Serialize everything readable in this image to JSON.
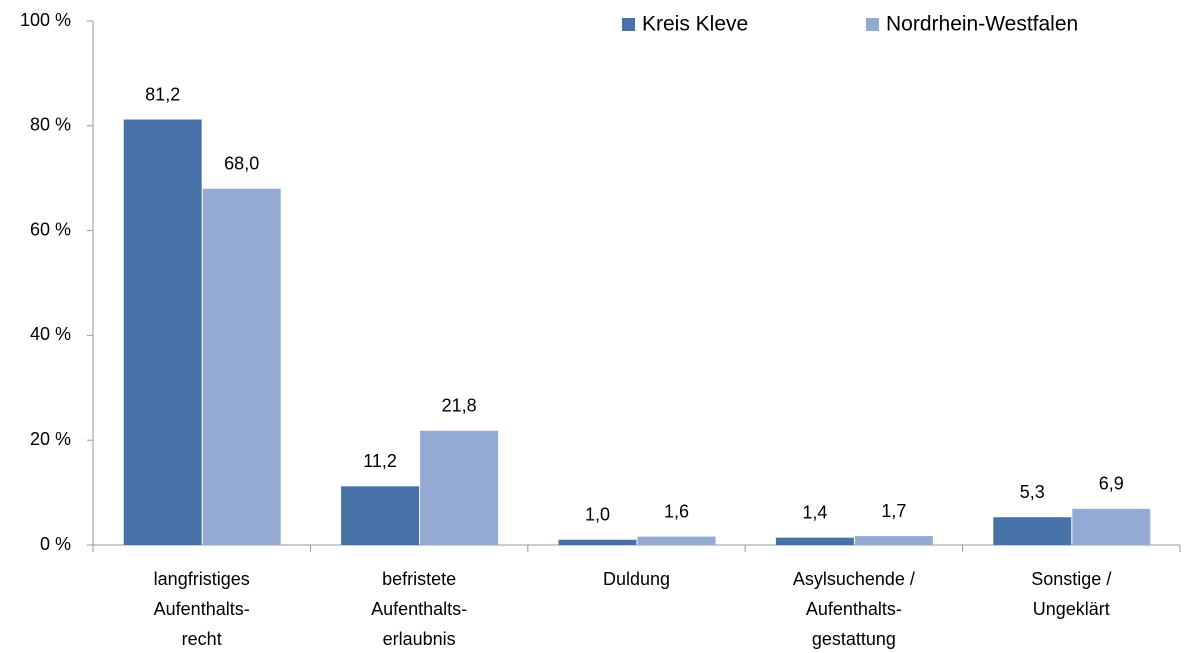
{
  "chart_data": {
    "type": "bar",
    "categories": [
      [
        "langfristiges",
        "Aufenthalts-",
        "recht"
      ],
      [
        "befristete",
        "Aufenthalts-",
        "erlaubnis"
      ],
      [
        "Duldung"
      ],
      [
        "Asylsuchende /",
        "Aufenthalts-",
        "gestattung"
      ],
      [
        "Sonstige /",
        "Ungeklärt"
      ]
    ],
    "series": [
      {
        "name": "Kreis Kleve",
        "color": "#4672a8",
        "values": [
          81.2,
          11.2,
          1.0,
          1.4,
          5.3
        ],
        "value_labels": [
          "81,2",
          "11,2",
          "1,0",
          "1,4",
          "5,3"
        ]
      },
      {
        "name": "Nordrhein-Westfalen",
        "color": "#95aad3",
        "values": [
          68.0,
          21.8,
          1.6,
          1.7,
          6.9
        ],
        "value_labels": [
          "68,0",
          "21,8",
          "1,6",
          "1,7",
          "6,9"
        ]
      }
    ],
    "ylim": [
      0,
      100
    ],
    "yticks": [
      {
        "value": 0,
        "label": "0 %"
      },
      {
        "value": 20,
        "label": "20 %"
      },
      {
        "value": 40,
        "label": "40 %"
      },
      {
        "value": 60,
        "label": "60 %"
      },
      {
        "value": 80,
        "label": "80 %"
      },
      {
        "value": 100,
        "label": "100 %"
      }
    ],
    "legend": "top",
    "grid": false
  }
}
